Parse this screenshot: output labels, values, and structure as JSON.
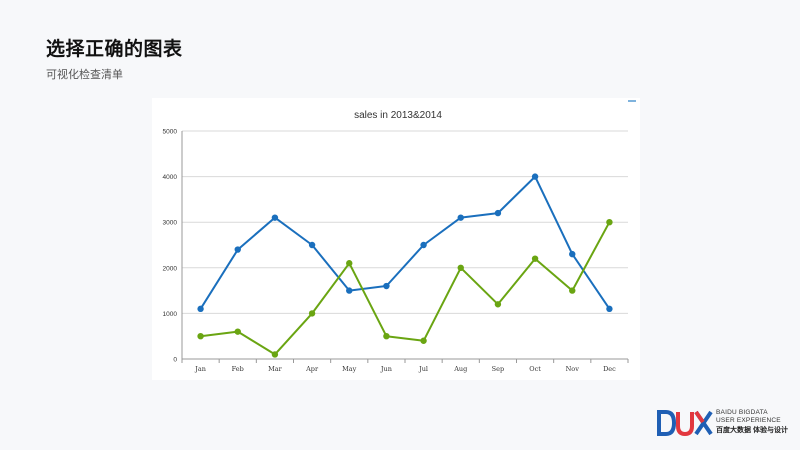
{
  "slide": {
    "title": "选择正确的图表",
    "subtitle": "可视化检查清单"
  },
  "logo": {
    "line1": "BAIDU BIGDATA",
    "line2": "USER EXPERIENCE",
    "line3": "百度大数据 体验与设计"
  },
  "chart_data": {
    "type": "line",
    "title": "sales in 2013&2014",
    "categories": [
      "Jan",
      "Feb",
      "Mar",
      "Apr",
      "May",
      "Jun",
      "Jul",
      "Aug",
      "Sep",
      "Oct",
      "Nov",
      "Dec"
    ],
    "series": [
      {
        "color": "#1a6fbd",
        "values": [
          1100,
          2400,
          3100,
          2500,
          1500,
          1600,
          2500,
          3100,
          3200,
          4000,
          2300,
          1100
        ]
      },
      {
        "color": "#6aa512",
        "values": [
          500,
          600,
          100,
          1000,
          2100,
          500,
          400,
          2000,
          1200,
          2200,
          1500,
          3000
        ]
      }
    ],
    "y_ticks": [
      "0",
      "1000",
      "2000",
      "3000",
      "4000",
      "5000"
    ],
    "ylim": [
      0,
      5000
    ],
    "grid": true,
    "legend": "none"
  }
}
